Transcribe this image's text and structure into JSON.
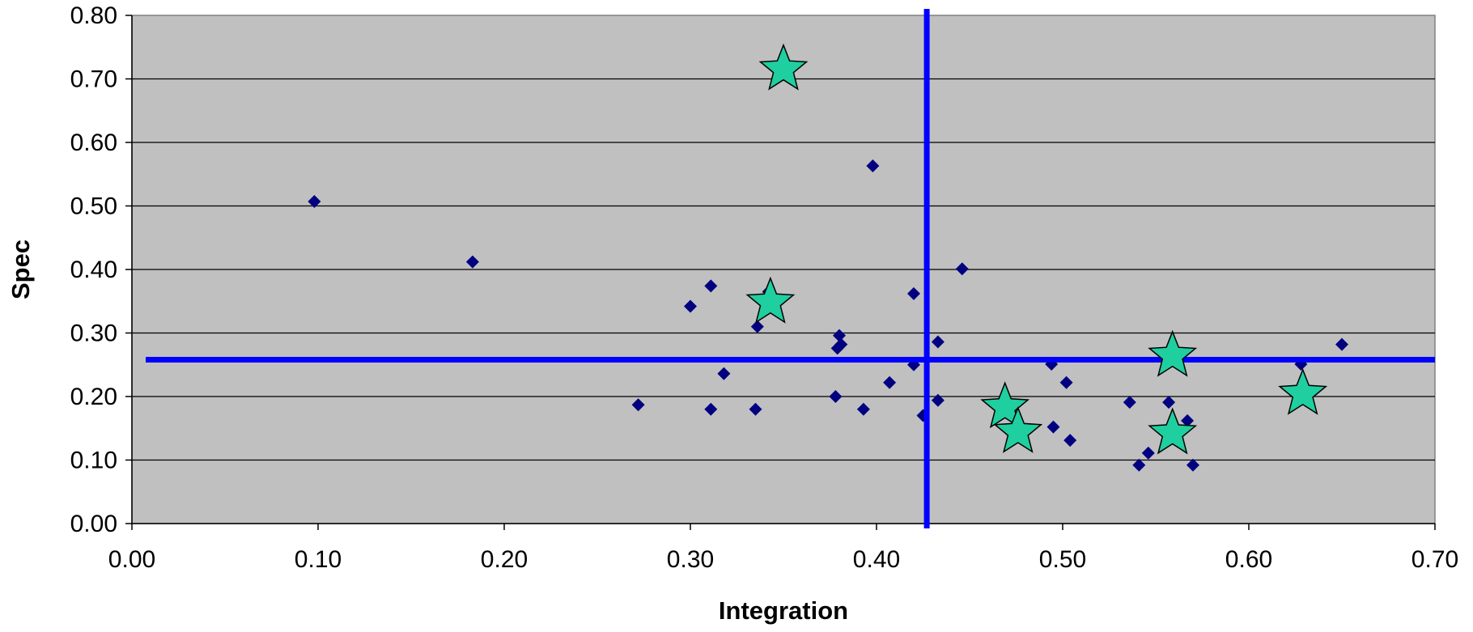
{
  "chart_data": {
    "type": "scatter",
    "title": "",
    "xlabel": "Integration",
    "ylabel": "Spec",
    "xlim": [
      0,
      0.7
    ],
    "ylim": [
      0,
      0.8
    ],
    "x_ticks": [
      "0.00",
      "0.10",
      "0.20",
      "0.30",
      "0.40",
      "0.50",
      "0.60",
      "0.70"
    ],
    "y_ticks": [
      "0.00",
      "0.10",
      "0.20",
      "0.30",
      "0.40",
      "0.50",
      "0.60",
      "0.70",
      "0.80"
    ],
    "grid": "horizontal",
    "plot_background": "#c0c0c0",
    "series": [
      {
        "marker": "diamond",
        "color": "#000080",
        "points": [
          {
            "x": 0.098,
            "y": 0.507
          },
          {
            "x": 0.183,
            "y": 0.412
          },
          {
            "x": 0.272,
            "y": 0.187
          },
          {
            "x": 0.3,
            "y": 0.342
          },
          {
            "x": 0.311,
            "y": 0.374
          },
          {
            "x": 0.311,
            "y": 0.18
          },
          {
            "x": 0.318,
            "y": 0.236
          },
          {
            "x": 0.335,
            "y": 0.18
          },
          {
            "x": 0.336,
            "y": 0.31
          },
          {
            "x": 0.342,
            "y": 0.365
          },
          {
            "x": 0.378,
            "y": 0.2
          },
          {
            "x": 0.379,
            "y": 0.276
          },
          {
            "x": 0.38,
            "y": 0.296
          },
          {
            "x": 0.381,
            "y": 0.282
          },
          {
            "x": 0.393,
            "y": 0.18
          },
          {
            "x": 0.398,
            "y": 0.563
          },
          {
            "x": 0.407,
            "y": 0.222
          },
          {
            "x": 0.42,
            "y": 0.362
          },
          {
            "x": 0.42,
            "y": 0.25
          },
          {
            "x": 0.425,
            "y": 0.17
          },
          {
            "x": 0.433,
            "y": 0.286
          },
          {
            "x": 0.433,
            "y": 0.194
          },
          {
            "x": 0.446,
            "y": 0.401
          },
          {
            "x": 0.494,
            "y": 0.251
          },
          {
            "x": 0.495,
            "y": 0.152
          },
          {
            "x": 0.502,
            "y": 0.222
          },
          {
            "x": 0.504,
            "y": 0.131
          },
          {
            "x": 0.536,
            "y": 0.191
          },
          {
            "x": 0.541,
            "y": 0.092
          },
          {
            "x": 0.546,
            "y": 0.111
          },
          {
            "x": 0.557,
            "y": 0.191
          },
          {
            "x": 0.567,
            "y": 0.162
          },
          {
            "x": 0.57,
            "y": 0.092
          },
          {
            "x": 0.628,
            "y": 0.251
          },
          {
            "x": 0.65,
            "y": 0.282
          }
        ]
      },
      {
        "marker": "star",
        "color": "#1fcf9f",
        "points": [
          {
            "x": 0.35,
            "y": 0.715
          },
          {
            "x": 0.343,
            "y": 0.348
          },
          {
            "x": 0.469,
            "y": 0.183
          },
          {
            "x": 0.476,
            "y": 0.144
          },
          {
            "x": 0.559,
            "y": 0.264
          },
          {
            "x": 0.559,
            "y": 0.142
          },
          {
            "x": 0.629,
            "y": 0.204
          }
        ]
      }
    ],
    "reference_lines": [
      {
        "orientation": "vertical",
        "value": 0.427,
        "color": "#0000ff"
      },
      {
        "orientation": "horizontal",
        "value": 0.258,
        "color": "#0000ff"
      }
    ]
  }
}
